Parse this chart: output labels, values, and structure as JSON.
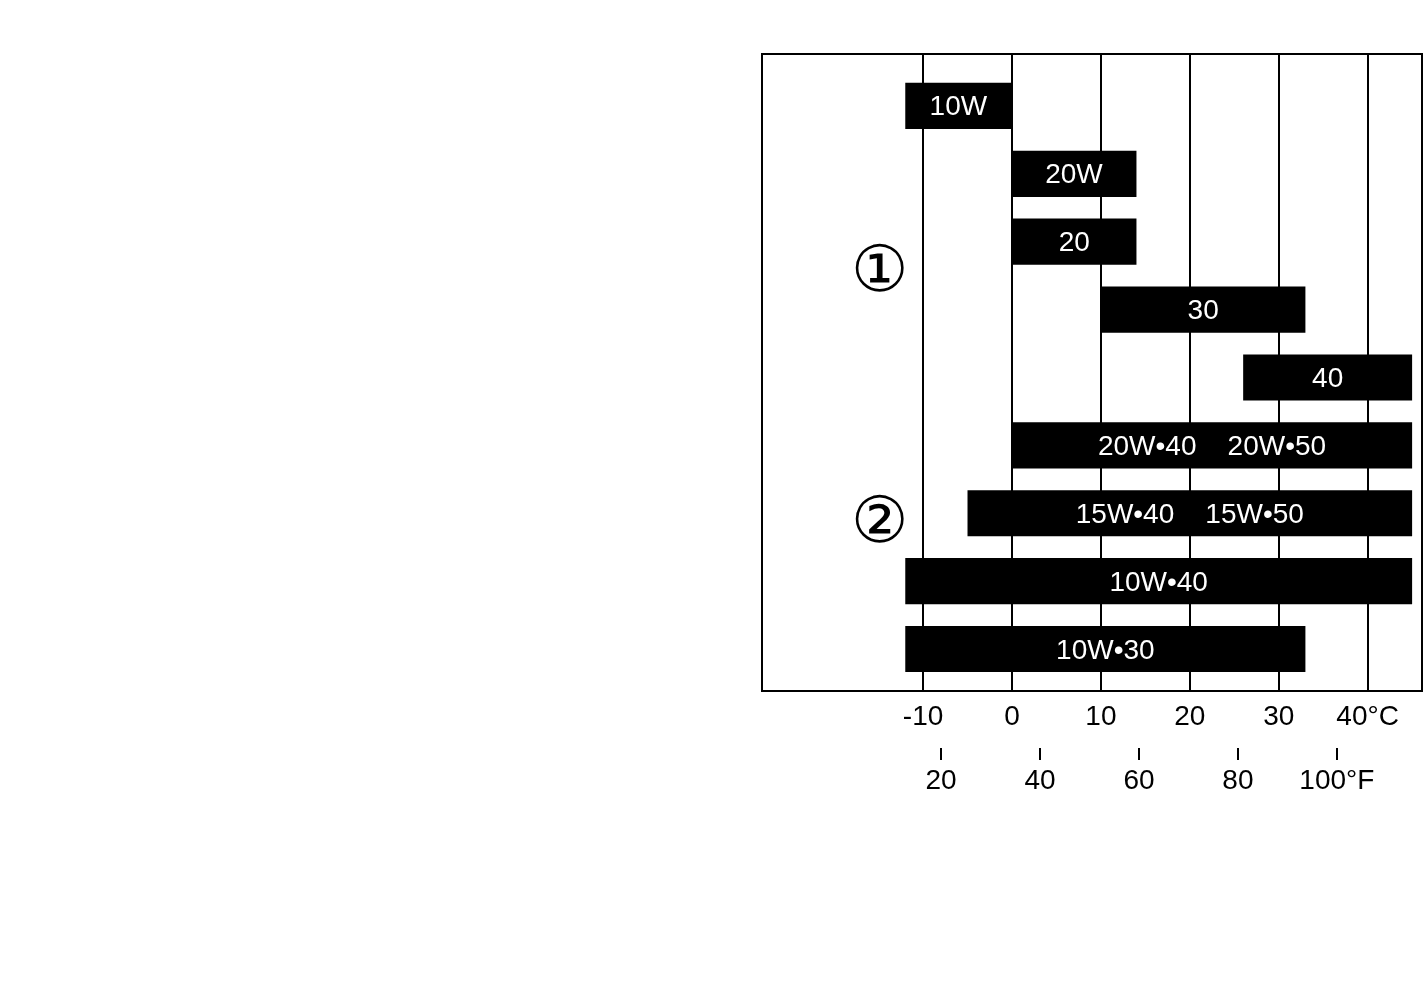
{
  "chart_data": {
    "type": "bar",
    "orientation": "horizontal",
    "categories": [
      "10W",
      "20W",
      "20",
      "30",
      "40",
      "20W•40    20W•50",
      "15W•40    15W•50",
      "10W•40",
      "10W•30"
    ],
    "values": [
      12,
      14,
      14,
      23,
      19,
      45,
      50,
      57,
      45
    ],
    "base": [
      -12,
      0,
      0,
      10,
      26,
      0,
      -5,
      -12,
      -12
    ],
    "color": "#000000",
    "xlim": [
      -28,
      46
    ],
    "xticks": [
      -10,
      0,
      10,
      20,
      30,
      {
        "value": 40,
        "label": "40°C"
      }
    ],
    "x2lim": [
      -16,
      117
    ],
    "x2ticks": [
      20,
      40,
      60,
      80,
      {
        "value": 100,
        "label": "100°F"
      }
    ],
    "grid": "x",
    "tick_labels": "x",
    "annotations": [
      "①",
      "②"
    ]
  }
}
